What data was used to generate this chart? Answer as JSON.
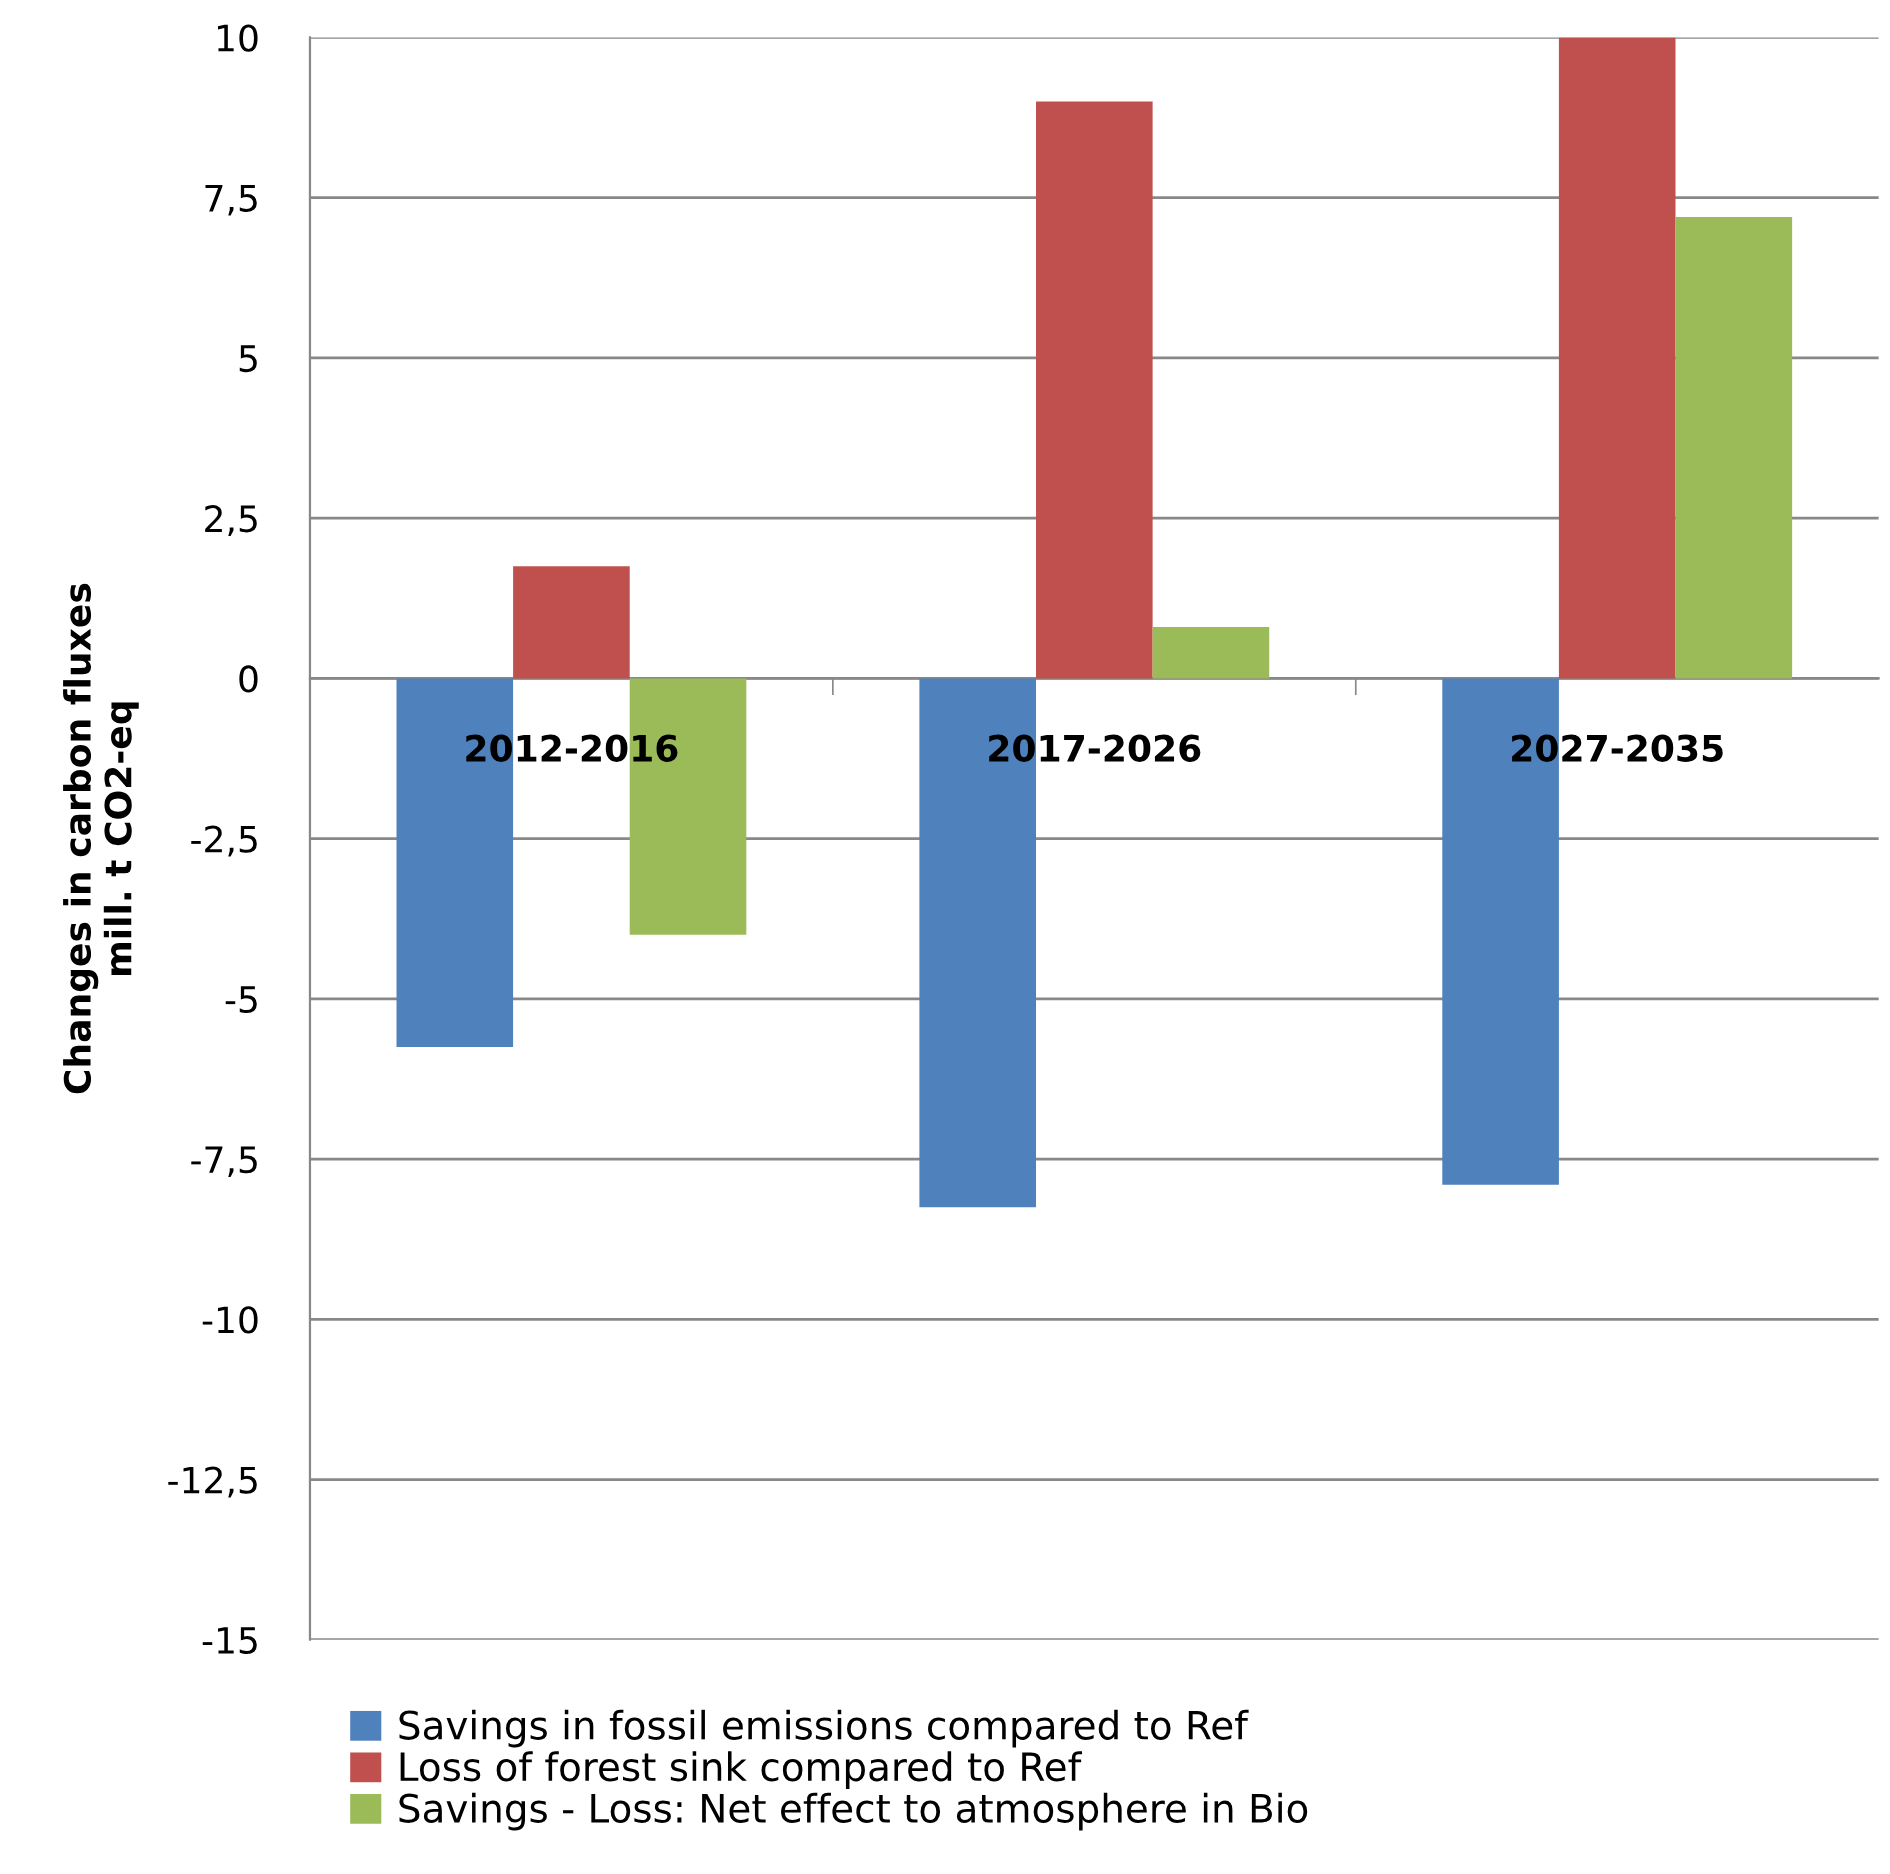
{
  "chart_data": {
    "type": "bar",
    "ylabel": "Changes in carbon fluxes\nmill. t CO2-eq",
    "categories": [
      "2012-2016",
      "2017-2026",
      "2027-2035"
    ],
    "series": [
      {
        "name": "Savings in fossil emissions compared to Ref",
        "color": "#4f81bd",
        "values": [
          -5.75,
          -8.25,
          -7.9
        ]
      },
      {
        "name": "Loss of forest sink compared to Ref",
        "color": "#c0504d",
        "values": [
          1.75,
          9.0,
          10.0
        ]
      },
      {
        "name": "Savings - Loss: Net effect to atmosphere in Bio",
        "color": "#9bbb59",
        "values": [
          -4.0,
          0.8,
          7.2
        ]
      }
    ],
    "ylim": [
      -15,
      10
    ],
    "yticks": [
      -15,
      {
        "value": -12.5,
        "label": "-12,5"
      },
      -10,
      {
        "value": -7.5,
        "label": "-7,5"
      },
      -5,
      {
        "value": -2.5,
        "label": "-2,5"
      },
      0,
      {
        "value": 2.5,
        "label": "2,5"
      },
      5,
      {
        "value": 7.5,
        "label": "7,5"
      },
      10
    ],
    "grid": "y",
    "legend": "bottom"
  }
}
